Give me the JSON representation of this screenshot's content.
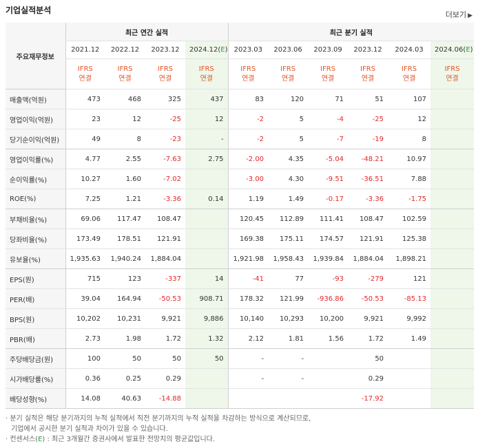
{
  "title": "기업실적분석",
  "more_label": "더보기",
  "more_arrow": "▶",
  "header": {
    "label_col": "주요재무정보",
    "annual_group": "최근 연간 실적",
    "quarter_group": "최근 분기 실적",
    "periods": [
      "2021.12",
      "2022.12",
      "2023.12",
      "2024.12(E)",
      "2023.03",
      "2023.06",
      "2023.09",
      "2023.12",
      "2024.03",
      "2024.06(E)"
    ],
    "ifrs_top": "IFRS",
    "ifrs_bottom": "연결"
  },
  "rows": [
    {
      "label": "매출액(억원)",
      "values": [
        "473",
        "468",
        "325",
        "437",
        "83",
        "120",
        "71",
        "51",
        "107",
        ""
      ]
    },
    {
      "label": "영업이익(억원)",
      "values": [
        "23",
        "12",
        "-25",
        "12",
        "-2",
        "5",
        "-4",
        "-25",
        "12",
        ""
      ]
    },
    {
      "label": "당기순이익(억원)",
      "values": [
        "49",
        "8",
        "-23",
        "-",
        "-2",
        "5",
        "-7",
        "-19",
        "8",
        ""
      ]
    },
    {
      "label": "영업이익률(%)",
      "values": [
        "4.77",
        "2.55",
        "-7.63",
        "2.75",
        "-2.00",
        "4.35",
        "-5.04",
        "-48.21",
        "10.97",
        ""
      ]
    },
    {
      "label": "순이익률(%)",
      "values": [
        "10.27",
        "1.60",
        "-7.02",
        "",
        "-3.00",
        "4.30",
        "-9.51",
        "-36.51",
        "7.88",
        ""
      ]
    },
    {
      "label": "ROE(%)",
      "values": [
        "7.25",
        "1.21",
        "-3.36",
        "0.14",
        "1.19",
        "1.49",
        "-0.17",
        "-3.36",
        "-1.75",
        ""
      ]
    },
    {
      "label": "부채비율(%)",
      "values": [
        "69.06",
        "117.47",
        "108.47",
        "",
        "120.45",
        "112.89",
        "111.41",
        "108.47",
        "102.59",
        ""
      ]
    },
    {
      "label": "당좌비율(%)",
      "values": [
        "173.49",
        "178.51",
        "121.91",
        "",
        "169.38",
        "175.11",
        "174.57",
        "121.91",
        "125.38",
        ""
      ]
    },
    {
      "label": "유보율(%)",
      "values": [
        "1,935.63",
        "1,940.24",
        "1,884.04",
        "",
        "1,921.98",
        "1,958.43",
        "1,939.84",
        "1,884.04",
        "1,898.21",
        ""
      ]
    },
    {
      "label": "EPS(원)",
      "values": [
        "715",
        "123",
        "-337",
        "14",
        "-41",
        "77",
        "-93",
        "-279",
        "121",
        ""
      ]
    },
    {
      "label": "PER(배)",
      "values": [
        "39.04",
        "164.94",
        "-50.53",
        "908.71",
        "178.32",
        "121.99",
        "-936.86",
        "-50.53",
        "-85.13",
        ""
      ]
    },
    {
      "label": "BPS(원)",
      "values": [
        "10,202",
        "10,231",
        "9,921",
        "9,886",
        "10,140",
        "10,293",
        "10,200",
        "9,921",
        "9,992",
        ""
      ]
    },
    {
      "label": "PBR(배)",
      "values": [
        "2.73",
        "1.98",
        "1.72",
        "1.32",
        "2.12",
        "1.81",
        "1.56",
        "1.72",
        "1.49",
        ""
      ]
    },
    {
      "label": "주당배당금(원)",
      "values": [
        "100",
        "50",
        "50",
        "50",
        "-",
        "-",
        "",
        "50",
        "",
        ""
      ]
    },
    {
      "label": "시가배당률(%)",
      "values": [
        "0.36",
        "0.25",
        "0.29",
        "",
        "-",
        "-",
        "",
        "0.29",
        "",
        ""
      ]
    },
    {
      "label": "배당성향(%)",
      "values": [
        "14.08",
        "40.63",
        "-14.88",
        "",
        "",
        "",
        "",
        "-17.92",
        "",
        ""
      ]
    }
  ],
  "notes": [
    "분기 실적은 해당 분기까지의 누적 실적에서 직전 분기까지의 누적 실적을 차감하는 방식으로 계산되므로,",
    "기업에서 공시한 분기 실적과 차이가 있을 수 있습니다.",
    "컨센서스(E) : 최근 3개월간 증권사에서 발표한 전망치의 평균값입니다."
  ],
  "colors": {
    "negative": "#e0272a",
    "ifrs": "#e0552a",
    "estimate_bg": "#eef7ea",
    "header_bg": "#f6f6f6"
  }
}
